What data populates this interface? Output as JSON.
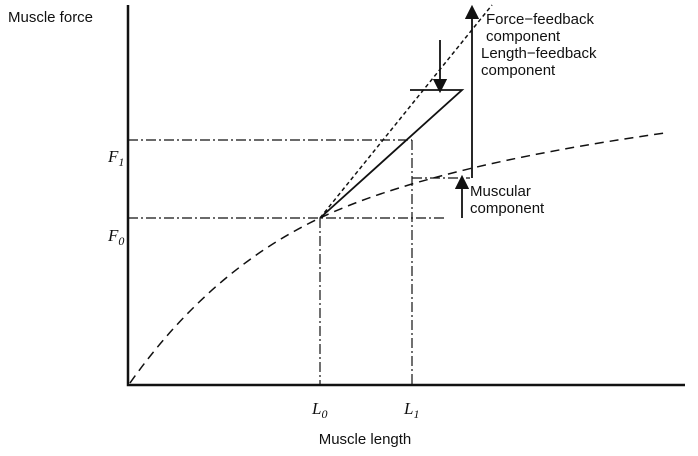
{
  "y_axis_label": "Muscle force",
  "x_axis_label": "Muscle length",
  "y_ticks": [
    {
      "main": "F",
      "sub": "1"
    },
    {
      "main": "F",
      "sub": "0"
    }
  ],
  "x_ticks": [
    {
      "main": "L",
      "sub": "0"
    },
    {
      "main": "L",
      "sub": "1"
    }
  ],
  "annotations": [
    {
      "lines": [
        "Force−feedback",
        "component"
      ]
    },
    {
      "lines": [
        "Length−feedback",
        "component"
      ]
    },
    {
      "lines": [
        "Muscular",
        "component"
      ]
    }
  ]
}
